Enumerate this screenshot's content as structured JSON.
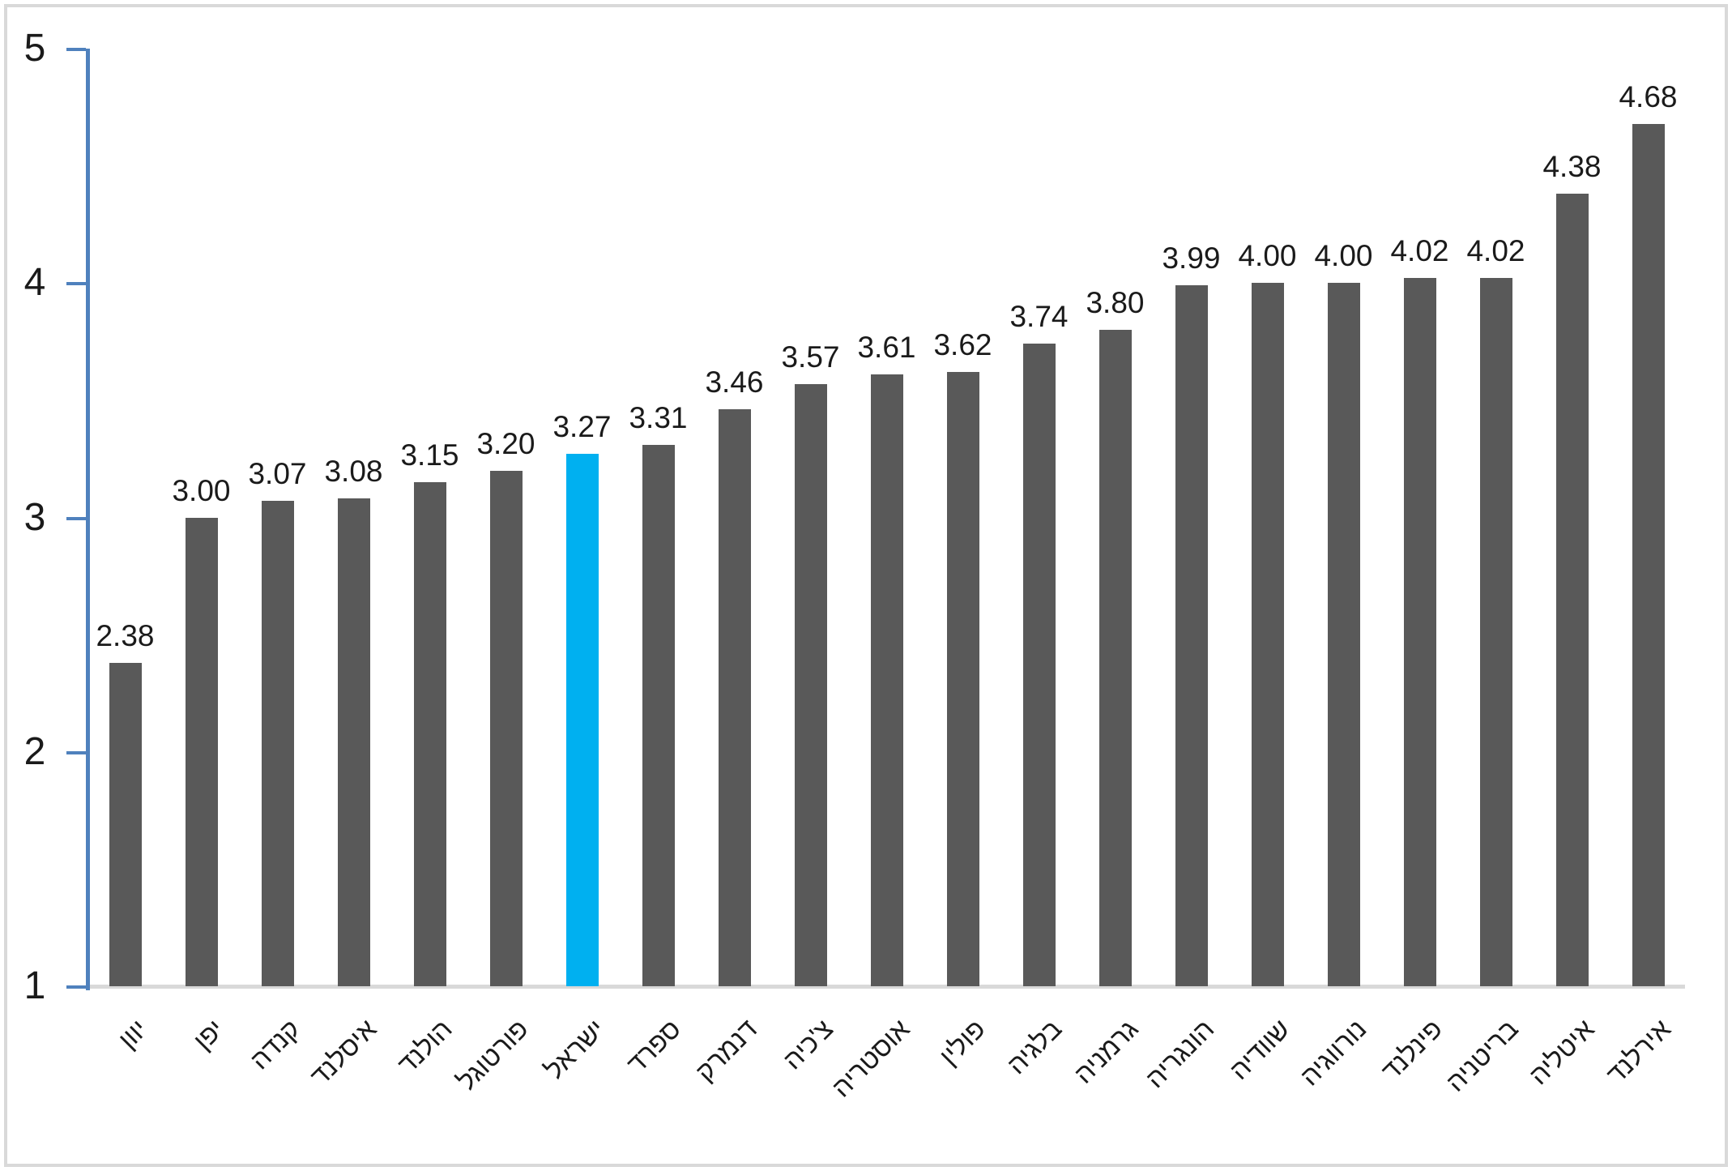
{
  "chart_data": {
    "type": "bar",
    "title": "",
    "xlabel": "",
    "ylabel": "",
    "ylim": [
      1,
      5
    ],
    "yticks": [
      "5",
      "4",
      "3",
      "2",
      "1"
    ],
    "ytick_values": [
      5,
      4,
      3,
      2,
      1
    ],
    "grid": false,
    "legend": false,
    "categories": [
      "יוון",
      "יפן",
      "קנדה",
      "איסלנד",
      "הולנד",
      "פורטוגל",
      "ישראל",
      "ספרד",
      "דנמרק",
      "צ'כיה",
      "אוסטריה",
      "פולין",
      "בלגיה",
      "גרמניה",
      "הונגריה",
      "שוודיה",
      "נורווגיה",
      "פינלנד",
      "בריטניה",
      "איטליה",
      "אירלנד"
    ],
    "values": [
      2.38,
      3.0,
      3.07,
      3.08,
      3.15,
      3.2,
      3.27,
      3.31,
      3.46,
      3.57,
      3.61,
      3.62,
      3.74,
      3.8,
      3.99,
      4.0,
      4.0,
      4.02,
      4.02,
      4.38,
      4.68
    ],
    "value_labels": [
      "2.38",
      "3.00",
      "3.07",
      "3.08",
      "3.15",
      "3.20",
      "3.27",
      "3.31",
      "3.46",
      "3.57",
      "3.61",
      "3.62",
      "3.74",
      "3.80",
      "3.99",
      "4.00",
      "4.00",
      "4.02",
      "4.02",
      "4.38",
      "4.68"
    ],
    "highlighted_category": "ישראל",
    "highlight_index": 6,
    "colors": {
      "bar": "#595959",
      "highlight": "#00b0f0",
      "axis": "#4f81bd",
      "baseline": "#d9d9d9",
      "text": "#1a1a1a",
      "frame_border": "#d9d9d9"
    }
  }
}
